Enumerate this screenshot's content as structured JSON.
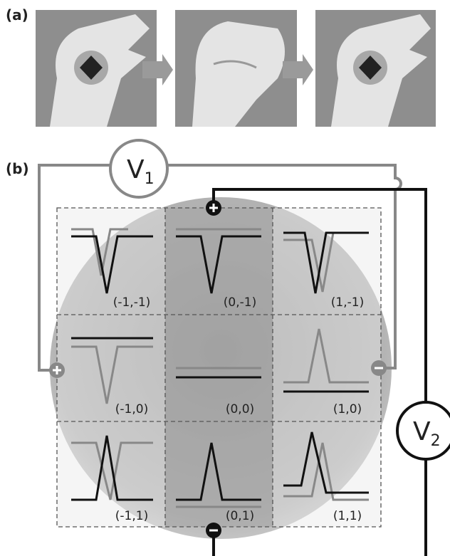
{
  "panel_labels": {
    "a": "(a)",
    "b": "(b)"
  },
  "voltmeters": [
    {
      "symbol": "V",
      "subscript": "1"
    },
    {
      "symbol": "V",
      "subscript": "2"
    }
  ],
  "cells": [
    "(-1,-1)",
    "(0,-1)",
    "(1,-1)",
    "(-1,0)",
    "(0,0)",
    "(1,0)",
    "(-1,1)",
    "(0,1)",
    "(1,1)"
  ]
}
